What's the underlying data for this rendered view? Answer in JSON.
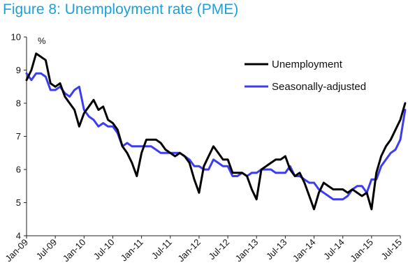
{
  "chart_data": {
    "type": "line",
    "title": "Figure 8: Unemployment rate (PME)",
    "unit_label": "%",
    "ylim": [
      4,
      10
    ],
    "y_ticks": [
      4,
      5,
      6,
      7,
      8,
      9,
      10
    ],
    "x_range": [
      "2009-01",
      "2015-07"
    ],
    "x_tick_labels": [
      "Jan-09",
      "Jul-09",
      "Jan-10",
      "Jul-10",
      "Jan-11",
      "Jul-11",
      "Jan-12",
      "Jul-12",
      "Jan-13",
      "Jul-13",
      "Jan-14",
      "Jul-14",
      "Jan-15",
      "Jul-15"
    ],
    "grid": false,
    "legend_position": "top-right",
    "colors": {
      "title": "#1aa0dc",
      "unemployment": "#000000",
      "seasonally_adjusted": "#3c3cf0"
    },
    "series": [
      {
        "name": "Unemployment",
        "color": "#000000",
        "start": "2009-01",
        "values": [
          8.7,
          9.0,
          9.5,
          9.4,
          9.3,
          8.6,
          8.5,
          8.6,
          8.2,
          8.0,
          7.8,
          7.3,
          7.7,
          7.9,
          8.1,
          7.8,
          7.9,
          7.5,
          7.4,
          7.2,
          6.7,
          6.5,
          6.2,
          5.8,
          6.5,
          6.9,
          6.9,
          6.9,
          6.8,
          6.6,
          6.5,
          6.4,
          6.5,
          6.4,
          6.2,
          5.7,
          5.3,
          6.1,
          6.4,
          6.7,
          6.5,
          6.3,
          6.3,
          5.9,
          5.9,
          5.9,
          5.8,
          5.4,
          5.1,
          6.0,
          6.1,
          6.2,
          6.3,
          6.3,
          6.4,
          6.0,
          5.8,
          5.9,
          5.6,
          5.2,
          4.8,
          5.3,
          5.6,
          5.5,
          5.4,
          5.4,
          5.4,
          5.3,
          5.4,
          5.3,
          5.2,
          5.3,
          4.8,
          5.9,
          6.4,
          6.7,
          6.9,
          7.2,
          7.5,
          8.0
        ]
      },
      {
        "name": "Seasonally-adjusted",
        "color": "#3c3cf0",
        "start": "2009-01",
        "values": [
          8.9,
          8.7,
          8.9,
          8.9,
          8.8,
          8.4,
          8.4,
          8.5,
          8.3,
          8.2,
          8.4,
          8.5,
          7.8,
          7.6,
          7.5,
          7.3,
          7.4,
          7.3,
          7.3,
          7.1,
          6.7,
          6.8,
          6.7,
          6.7,
          6.7,
          6.7,
          6.7,
          6.6,
          6.5,
          6.5,
          6.5,
          6.5,
          6.5,
          6.4,
          6.3,
          6.1,
          6.1,
          6.0,
          6.0,
          6.3,
          6.2,
          6.1,
          6.1,
          5.8,
          5.8,
          5.9,
          5.8,
          5.9,
          5.9,
          6.0,
          6.0,
          6.0,
          5.9,
          5.9,
          5.9,
          6.1,
          5.8,
          5.8,
          5.7,
          5.6,
          5.6,
          5.4,
          5.3,
          5.2,
          5.1,
          5.1,
          5.1,
          5.2,
          5.4,
          5.5,
          5.5,
          5.3,
          5.7,
          5.7,
          6.1,
          6.3,
          6.5,
          6.6,
          6.9,
          7.8
        ]
      }
    ]
  }
}
